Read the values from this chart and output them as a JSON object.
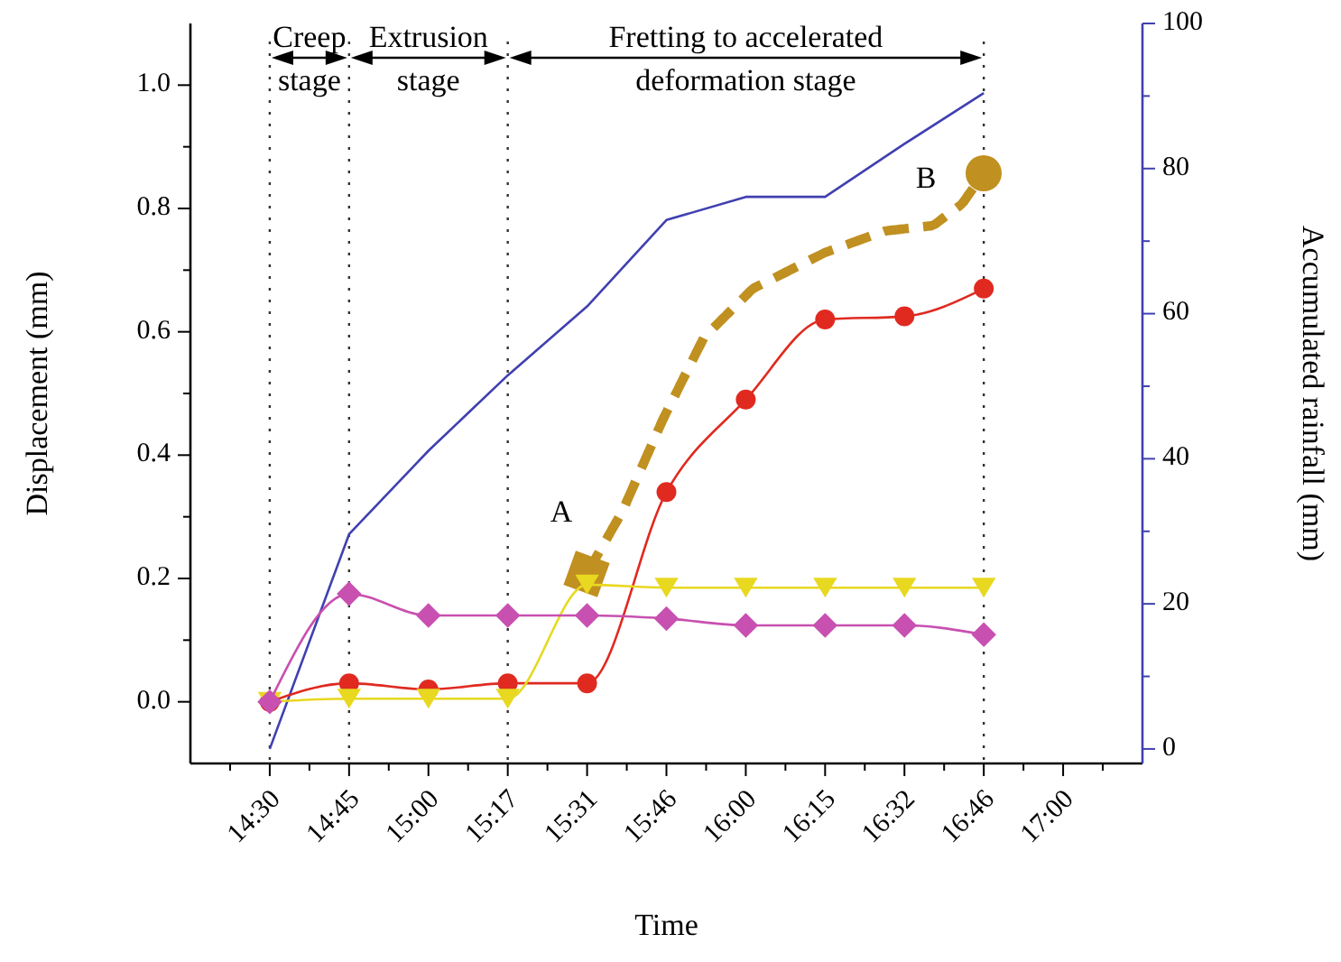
{
  "chart_data": {
    "type": "line",
    "xlabel": "Time",
    "ylabel": "Displacement (mm)",
    "y2label": "Accumulated rainfall (mm)",
    "categories": [
      "14:30",
      "14:45",
      "15:00",
      "15:17",
      "15:31",
      "15:46",
      "16:00",
      "16:15",
      "16:32",
      "16:46",
      "17:00"
    ],
    "ylim": [
      -0.1,
      1.1
    ],
    "yticks": [
      {
        "value": 0,
        "label": "0.0"
      },
      {
        "value": 0.1,
        "label": null
      },
      0.2,
      {
        "value": 0.3,
        "label": null
      },
      0.4,
      {
        "value": 0.5,
        "label": null
      },
      0.6,
      {
        "value": 0.7,
        "label": null
      },
      0.8,
      {
        "value": 0.9,
        "label": null
      },
      {
        "value": 1,
        "label": "1.0"
      }
    ],
    "y2lim": [
      -2,
      100
    ],
    "y2ticks": [
      0,
      {
        "value": 10,
        "label": null
      },
      20,
      {
        "value": 30,
        "label": null
      },
      40,
      {
        "value": 50,
        "label": null
      },
      60,
      {
        "value": 70,
        "label": null
      },
      80,
      {
        "value": 90,
        "label": null
      },
      100
    ],
    "series": [
      {
        "axis": "y2",
        "color": "#4040b0",
        "marker": "none",
        "line_style": "solid",
        "values": [
          0,
          29.6,
          41.1,
          51.5,
          61,
          72.9,
          76.1,
          76.1,
          83.4,
          90.4,
          null
        ]
      },
      {
        "color": "#e02a20",
        "marker": "circle",
        "line_style": "solid",
        "values": [
          0,
          0.03,
          0.02,
          0.03,
          0.03,
          0.34,
          0.49,
          0.62,
          0.625,
          0.67,
          null
        ]
      },
      {
        "color": "#e8d820",
        "marker": "triangle",
        "line_style": "solid",
        "values": [
          0,
          0.005,
          0.005,
          0.005,
          0.19,
          0.185,
          0.185,
          0.185,
          0.185,
          0.185,
          null
        ]
      },
      {
        "color": "#c850b0",
        "marker": "diamond",
        "line_style": "solid",
        "values": [
          0,
          0.175,
          0.14,
          0.14,
          0.14,
          0.135,
          0.124,
          0.124,
          0.124,
          0.109,
          null
        ]
      }
    ],
    "ref_lines": [
      {
        "axis": "x",
        "value": "14:30",
        "color": "#333333",
        "line_style": "dotted"
      },
      {
        "axis": "x",
        "value": "14:45",
        "color": "#333333",
        "line_style": "dotted"
      },
      {
        "axis": "x",
        "value": "15:17",
        "color": "#333333",
        "line_style": "dotted"
      },
      {
        "axis": "x",
        "value": "16:46",
        "color": "#333333",
        "line_style": "dotted"
      }
    ],
    "annotations": [
      "Creep stage",
      "Extrusion stage",
      "Fretting to accelerated deformation stage",
      "A",
      "B"
    ]
  }
}
